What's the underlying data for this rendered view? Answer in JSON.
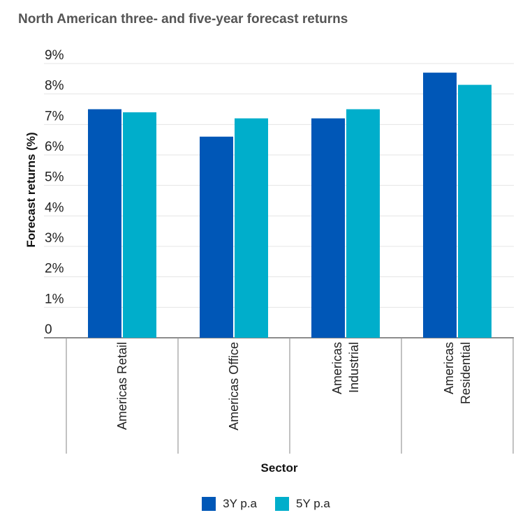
{
  "chart_data": {
    "type": "bar",
    "title": "North American three- and five-year forecast returns",
    "xlabel": "Sector",
    "ylabel": "Forecast returns (%)",
    "ylim": [
      0,
      9
    ],
    "yticks": [
      "0",
      "1%",
      "2%",
      "3%",
      "4%",
      "5%",
      "6%",
      "7%",
      "8%",
      "9%"
    ],
    "categories": [
      [
        "Americas Retail"
      ],
      [
        "Americas Office"
      ],
      [
        "Americas",
        "Industrial"
      ],
      [
        "Americas",
        "Residential"
      ]
    ],
    "series": [
      {
        "name": "3Y p.a",
        "color": "#0057B7",
        "values": [
          7.5,
          6.6,
          7.2,
          8.7
        ]
      },
      {
        "name": "5Y p.a",
        "color": "#00AECB",
        "values": [
          7.4,
          7.2,
          7.5,
          8.3
        ]
      }
    ],
    "grid": true,
    "legend": "bottom-center"
  }
}
